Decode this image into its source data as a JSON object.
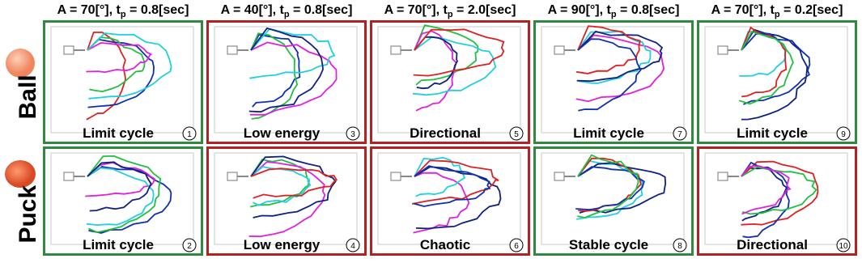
{
  "columns": [
    {
      "head": "A = 70[°], t",
      "sub": "p",
      "tail": " = 0.8[sec]"
    },
    {
      "head": "A = 40[°], t",
      "sub": "p",
      "tail": " = 0.8[sec]"
    },
    {
      "head": "A = 70[°], t",
      "sub": "p",
      "tail": " = 2.0[sec]"
    },
    {
      "head": "A = 90[°], t",
      "sub": "p",
      "tail": " = 0.8[sec]"
    },
    {
      "head": "A = 70[°], t",
      "sub": "p",
      "tail": " = 0.2[sec]"
    }
  ],
  "rows": [
    {
      "label": "Ball",
      "panels": [
        {
          "label": "Limit cycle",
          "number": 1,
          "color": "#2e8b3e"
        },
        {
          "label": "Low energy",
          "number": 3,
          "color": "#b22222"
        },
        {
          "label": "Directional",
          "number": 5,
          "color": "#b22222"
        },
        {
          "label": "Limit cycle",
          "number": 7,
          "color": "#2e8b3e"
        },
        {
          "label": "Limit cycle",
          "number": 9,
          "color": "#2e8b3e"
        }
      ]
    },
    {
      "label": "Puck",
      "panels": [
        {
          "label": "Limit cycle",
          "number": 2,
          "color": "#2e8b3e"
        },
        {
          "label": "Low energy",
          "number": 4,
          "color": "#b22222"
        },
        {
          "label": "Chaotic",
          "number": 6,
          "color": "#b22222"
        },
        {
          "label": "Stable cycle",
          "number": 8,
          "color": "#2e8b3e"
        },
        {
          "label": "Directional",
          "number": 10,
          "color": "#b22222"
        }
      ]
    }
  ]
}
